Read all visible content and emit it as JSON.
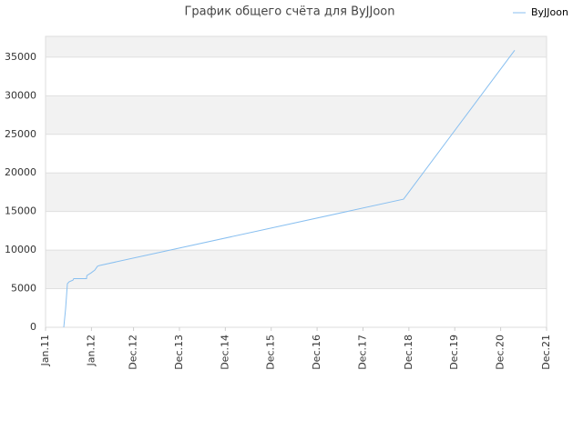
{
  "chart_data": {
    "type": "line",
    "title": "График общего счёта для ByJJoon",
    "x": [
      2011.397,
      2011.437,
      2011.476,
      2011.516,
      2011.595,
      2011.615,
      2011.893,
      2011.9,
      2011.992,
      2012.072,
      2012.131,
      2012.171,
      2018.801,
      2021.222
    ],
    "series": [
      {
        "name": "ByJJoon",
        "color": "#88bff0",
        "values": [
          0,
          2400,
          5650,
          5900,
          6100,
          6300,
          6300,
          6700,
          7050,
          7400,
          7900,
          8000,
          16600,
          35900
        ]
      }
    ],
    "xlim": [
      2011,
      2021.917
    ],
    "xticks": [
      {
        "value": 2011,
        "label": "Jan.11"
      },
      {
        "value": 2012,
        "label": "Jan.12"
      },
      {
        "value": 2012.917,
        "label": "Dec.12"
      },
      {
        "value": 2013.917,
        "label": "Dec.13"
      },
      {
        "value": 2014.917,
        "label": "Dec.14"
      },
      {
        "value": 2015.917,
        "label": "Dec.15"
      },
      {
        "value": 2016.917,
        "label": "Dec.16"
      },
      {
        "value": 2017.917,
        "label": "Dec.17"
      },
      {
        "value": 2018.917,
        "label": "Dec.18"
      },
      {
        "value": 2019.917,
        "label": "Dec.19"
      },
      {
        "value": 2020.917,
        "label": "Dec.20"
      },
      {
        "value": 2021.917,
        "label": "Dec.21"
      }
    ],
    "ylim": [
      0,
      37700
    ],
    "yticks": [
      0,
      5000,
      10000,
      15000,
      20000,
      25000,
      30000,
      35000
    ],
    "grid": true,
    "band_color": "#f2f2f2",
    "legend": "top-right"
  }
}
